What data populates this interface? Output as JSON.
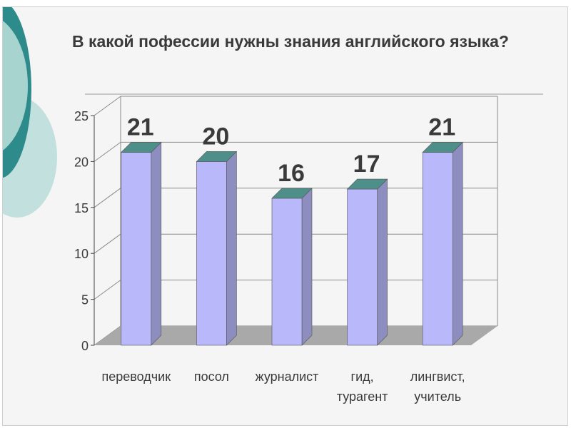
{
  "chart_data": {
    "type": "bar",
    "title": "В какой пофессии нужны знания английского языка?",
    "categories": [
      [
        "переводчик"
      ],
      [
        "посол"
      ],
      [
        "журналист"
      ],
      [
        "гид,",
        "турагент"
      ],
      [
        "лингвист,",
        "учитель"
      ]
    ],
    "values": [
      21,
      20,
      16,
      17,
      21
    ],
    "ylim": [
      0,
      25
    ],
    "yticks": [
      0,
      5,
      10,
      15,
      20,
      25
    ],
    "grid": true,
    "legend": "none",
    "colors": {
      "bar_front": "#b8b8fa",
      "bar_side": "#8d8dc0",
      "bar_top": "#4f8f8a",
      "floor": "#a9a9a9",
      "grid": "#8a8a8a",
      "text": "#3a3a3a",
      "deco_teal": "#2e8b8b",
      "deco_light": "#a8d4d0"
    }
  }
}
